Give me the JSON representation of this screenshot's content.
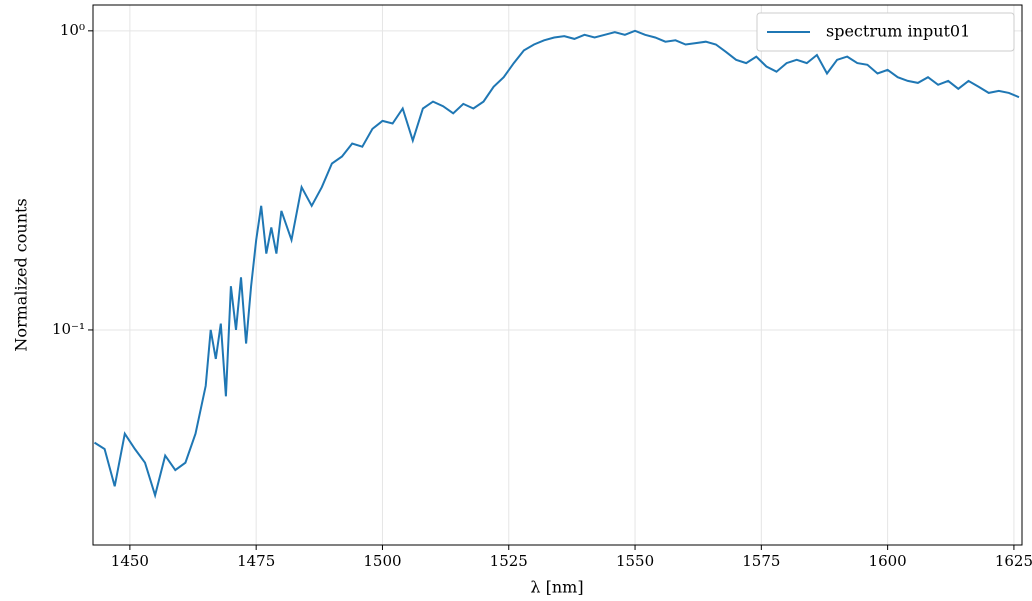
{
  "chart_data": {
    "type": "line",
    "xlabel": "λ [nm]",
    "ylabel": "Normalized counts",
    "xlim": [
      1442.7,
      1626.6
    ],
    "ylim": [
      0.0191,
      1.22
    ],
    "yscale": "log",
    "grid": true,
    "legend": "upper right",
    "xticks": [
      1450,
      1475,
      1500,
      1525,
      1550,
      1575,
      1600,
      1625
    ],
    "yticks": [
      {
        "value": 0.1,
        "label": "10⁻¹"
      },
      {
        "value": 1,
        "label": "10⁰"
      }
    ],
    "x": [
      1443,
      1445,
      1447,
      1449,
      1451,
      1453,
      1455,
      1457,
      1459,
      1461,
      1463,
      1465,
      1466,
      1467,
      1468,
      1469,
      1470,
      1471,
      1472,
      1473,
      1474,
      1475,
      1476,
      1477,
      1478,
      1479,
      1480,
      1482,
      1484,
      1486,
      1488,
      1490,
      1492,
      1494,
      1496,
      1498,
      1500,
      1502,
      1504,
      1506,
      1508,
      1510,
      1512,
      1514,
      1516,
      1518,
      1520,
      1522,
      1524,
      1526,
      1528,
      1530,
      1532,
      1534,
      1536,
      1538,
      1540,
      1542,
      1544,
      1546,
      1548,
      1550,
      1552,
      1554,
      1556,
      1558,
      1560,
      1562,
      1564,
      1566,
      1568,
      1570,
      1572,
      1574,
      1576,
      1578,
      1580,
      1582,
      1584,
      1586,
      1588,
      1590,
      1592,
      1594,
      1596,
      1598,
      1600,
      1602,
      1604,
      1606,
      1608,
      1610,
      1612,
      1614,
      1616,
      1618,
      1620,
      1622,
      1624,
      1626
    ],
    "series": [
      {
        "name": "spectrum input01",
        "color": "#1f77b4",
        "values": [
          0.042,
          0.04,
          0.03,
          0.045,
          0.04,
          0.036,
          0.028,
          0.038,
          0.034,
          0.036,
          0.045,
          0.065,
          0.1,
          0.08,
          0.105,
          0.06,
          0.14,
          0.1,
          0.15,
          0.09,
          0.14,
          0.2,
          0.26,
          0.18,
          0.22,
          0.18,
          0.25,
          0.2,
          0.3,
          0.26,
          0.3,
          0.36,
          0.38,
          0.42,
          0.41,
          0.47,
          0.5,
          0.49,
          0.55,
          0.43,
          0.55,
          0.58,
          0.56,
          0.53,
          0.57,
          0.55,
          0.58,
          0.65,
          0.7,
          0.78,
          0.86,
          0.9,
          0.93,
          0.95,
          0.96,
          0.94,
          0.97,
          0.95,
          0.97,
          0.99,
          0.97,
          1.0,
          0.97,
          0.95,
          0.92,
          0.93,
          0.9,
          0.91,
          0.92,
          0.9,
          0.85,
          0.8,
          0.78,
          0.82,
          0.76,
          0.73,
          0.78,
          0.8,
          0.78,
          0.83,
          0.72,
          0.8,
          0.82,
          0.78,
          0.77,
          0.72,
          0.74,
          0.7,
          0.68,
          0.67,
          0.7,
          0.66,
          0.68,
          0.64,
          0.68,
          0.65,
          0.62,
          0.63,
          0.62,
          0.6
        ]
      }
    ]
  }
}
